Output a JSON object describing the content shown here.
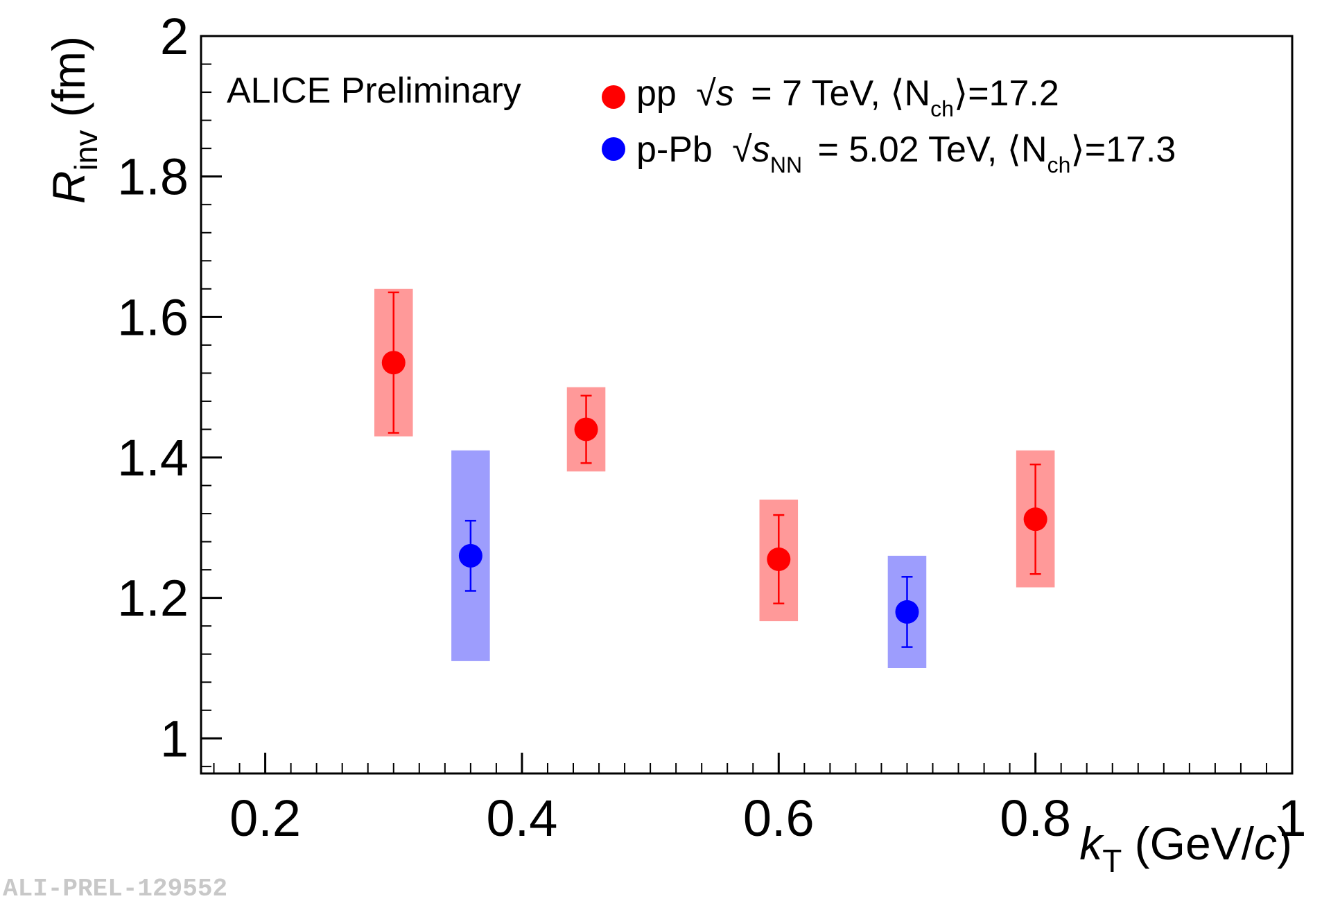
{
  "chart_data": {
    "type": "scatter",
    "title": "",
    "xlabel": "k_T (GeV/c)",
    "ylabel": "R_inv (fm)",
    "xlim": [
      0.15,
      1.0
    ],
    "ylim": [
      0.95,
      2.0
    ],
    "x_ticks": [
      "0.2",
      "0.4",
      "0.6",
      "0.8",
      "1"
    ],
    "x_tick_values": [
      0.2,
      0.4,
      0.6,
      0.8,
      1.0
    ],
    "y_ticks": [
      "1",
      "1.2",
      "1.4",
      "1.6",
      "1.8",
      "2"
    ],
    "y_tick_values": [
      1.0,
      1.2,
      1.4,
      1.6,
      1.8,
      2.0
    ],
    "grid": false,
    "legend_position": "top",
    "series": [
      {
        "name": "pp",
        "color": "#ff0000",
        "syst_color": "#ff9999",
        "points": [
          {
            "x": 0.3,
            "y": 1.535,
            "stat_err": 0.1,
            "syst_lo": 1.43,
            "syst_hi": 1.64,
            "syst_halfwidth_x": 0.015
          },
          {
            "x": 0.45,
            "y": 1.44,
            "stat_err": 0.048,
            "syst_lo": 1.38,
            "syst_hi": 1.5,
            "syst_halfwidth_x": 0.015
          },
          {
            "x": 0.6,
            "y": 1.255,
            "stat_err": 0.063,
            "syst_lo": 1.167,
            "syst_hi": 1.34,
            "syst_halfwidth_x": 0.015
          },
          {
            "x": 0.8,
            "y": 1.312,
            "stat_err": 0.078,
            "syst_lo": 1.215,
            "syst_hi": 1.41,
            "syst_halfwidth_x": 0.015
          }
        ]
      },
      {
        "name": "p-Pb",
        "color": "#0000ff",
        "syst_color": "#9d9dfd",
        "points": [
          {
            "x": 0.36,
            "y": 1.26,
            "stat_err": 0.05,
            "syst_lo": 1.11,
            "syst_hi": 1.41,
            "syst_halfwidth_x": 0.015
          },
          {
            "x": 0.7,
            "y": 1.18,
            "stat_err": 0.05,
            "syst_lo": 1.1,
            "syst_hi": 1.26,
            "syst_halfwidth_x": 0.015
          }
        ]
      }
    ],
    "annotation": "ALICE Preliminary",
    "legend": [
      {
        "system": "pp",
        "prefix": "√s",
        "energy": "= 7 TeV, ⟨N",
        "sub": "ch",
        "suffix": "⟩=17.2"
      },
      {
        "system": "p-Pb",
        "prefix": "√s",
        "sub_prefix": "NN",
        "energy": "= 5.02 TeV, ⟨N",
        "sub": "ch",
        "suffix": "⟩=17.3"
      }
    ],
    "watermark": "ALI-PREL-129552"
  },
  "axes_text": {
    "x_main": "k",
    "x_sub": "T",
    "x_unit": " (GeV/",
    "x_unit_italic": "c",
    "x_unit_close": ")",
    "y_main": "R",
    "y_sub": "inv",
    "y_unit": " (fm)"
  }
}
